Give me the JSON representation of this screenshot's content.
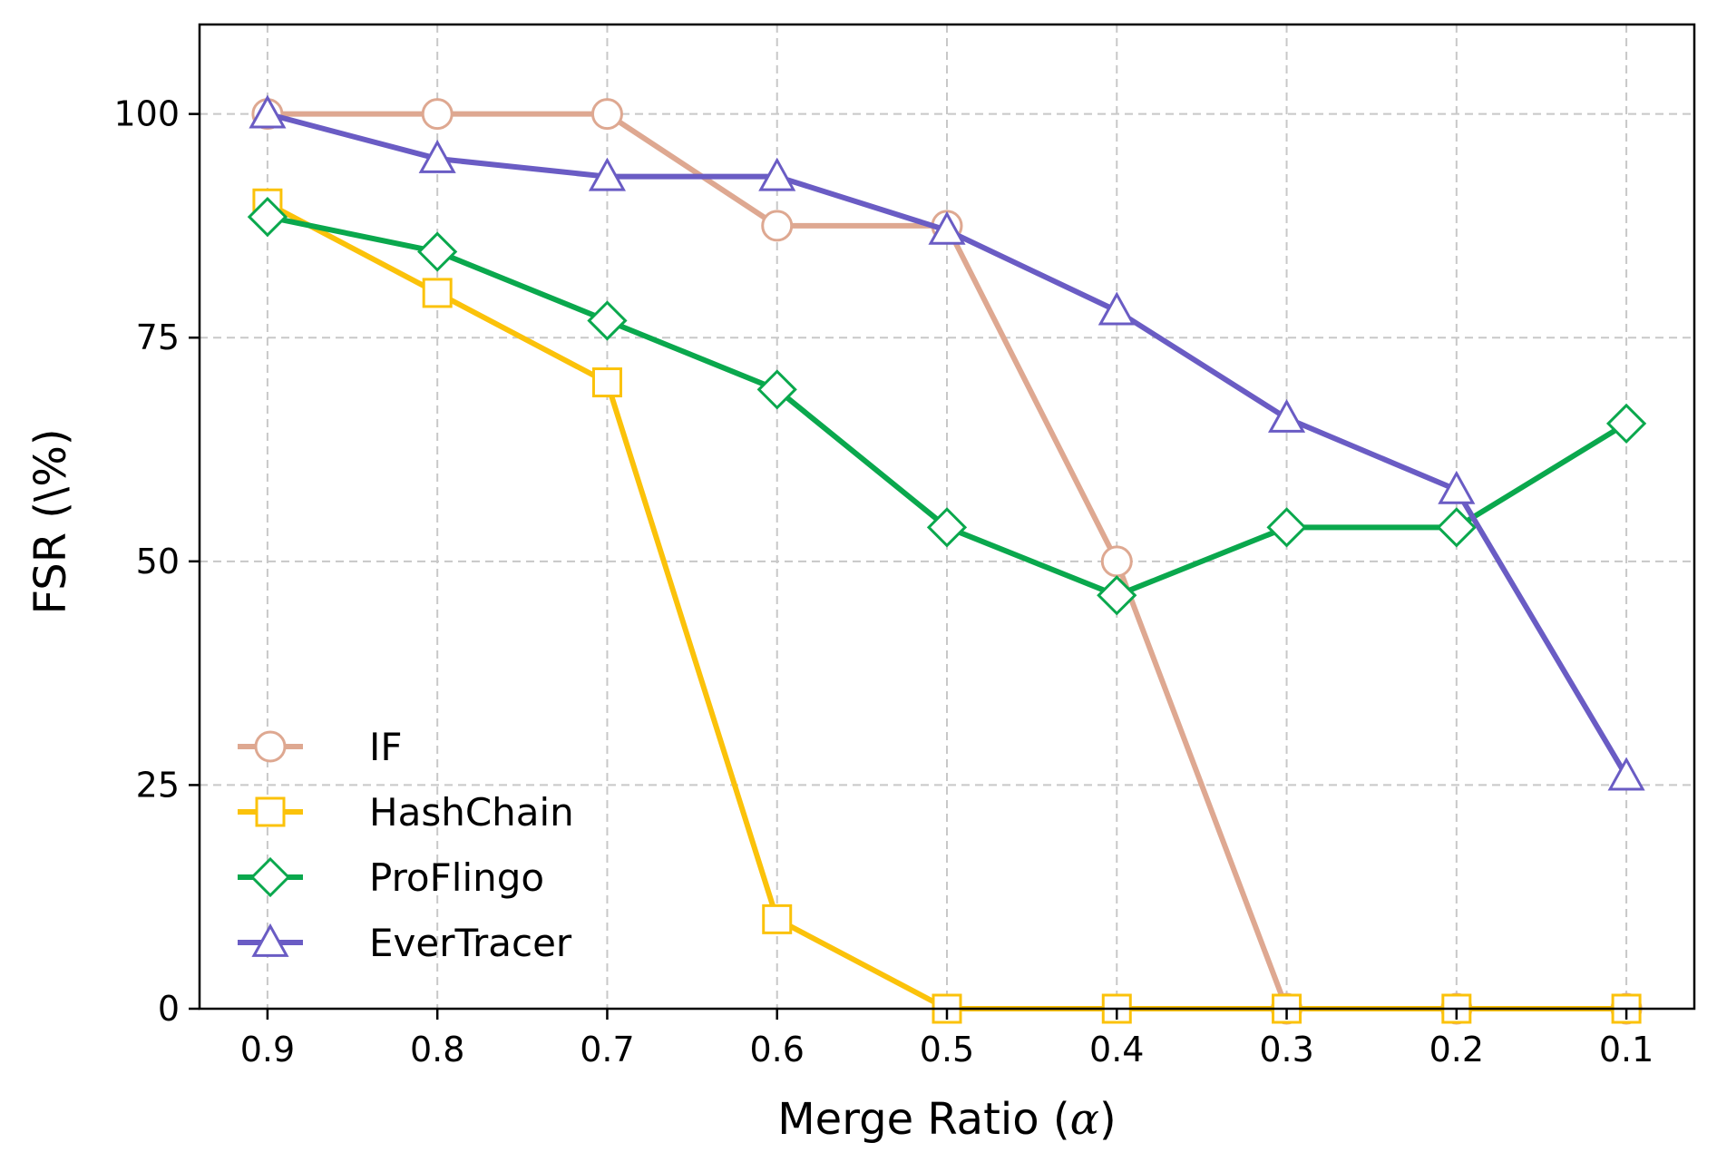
{
  "chart_data": {
    "type": "line",
    "title": "",
    "xlabel_text": "Merge Ratio (",
    "xlabel_symbol": "α",
    "xlabel_close": ")",
    "ylabel": "FSR (\\%)",
    "x": [
      0.9,
      0.8,
      0.7,
      0.6,
      0.5,
      0.4,
      0.3,
      0.2,
      0.1
    ],
    "x_tick_labels": [
      "0.9",
      "0.8",
      "0.7",
      "0.6",
      "0.5",
      "0.4",
      "0.3",
      "0.2",
      "0.1"
    ],
    "x_reversed": true,
    "xlim": [
      0.94,
      0.06
    ],
    "ylim": [
      0,
      110
    ],
    "y_ticks": [
      0,
      25,
      50,
      75,
      100
    ],
    "y_tick_labels": [
      "0",
      "25",
      "50",
      "75",
      "100"
    ],
    "grid": true,
    "legend_position": "lower-left",
    "series": [
      {
        "name": "IF",
        "color": "#dea891",
        "marker": "circle",
        "values": [
          100,
          100,
          100,
          87.5,
          87.5,
          50,
          0,
          0,
          0
        ]
      },
      {
        "name": "HashChain",
        "color": "#fbc20a",
        "marker": "square",
        "values": [
          90,
          80,
          70,
          10,
          0,
          0,
          0,
          0,
          0
        ]
      },
      {
        "name": "ProFlingo",
        "color": "#0aa84d",
        "marker": "diamond",
        "values": [
          88.5,
          84.6,
          76.9,
          69.2,
          53.8,
          46.2,
          53.8,
          53.8,
          65.4
        ]
      },
      {
        "name": "EverTracer",
        "color": "#6a5cc4",
        "marker": "triangle",
        "values": [
          100,
          95,
          93,
          93,
          87,
          78,
          66,
          58,
          26
        ]
      }
    ]
  }
}
